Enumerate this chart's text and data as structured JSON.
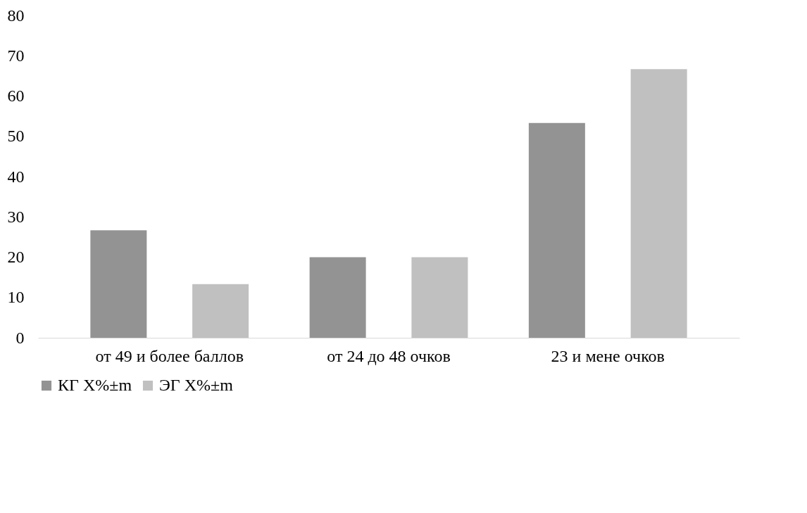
{
  "chart_data": {
    "type": "bar",
    "categories": [
      "от 49 и более баллов",
      "от 24 до 48 очков",
      "23 и мене очков"
    ],
    "series": [
      {
        "name": "КГ X%±m",
        "color": "#939393",
        "values": [
          26.7,
          20,
          53.3
        ]
      },
      {
        "name": "ЭГ X%±m",
        "color": "#c0c0c0",
        "values": [
          13.3,
          20,
          66.7
        ]
      }
    ],
    "ylim": [
      0,
      80
    ],
    "yticks": [
      0,
      10,
      20,
      30,
      40,
      50,
      60,
      70,
      80
    ],
    "grid": false,
    "legend": "bottom"
  }
}
